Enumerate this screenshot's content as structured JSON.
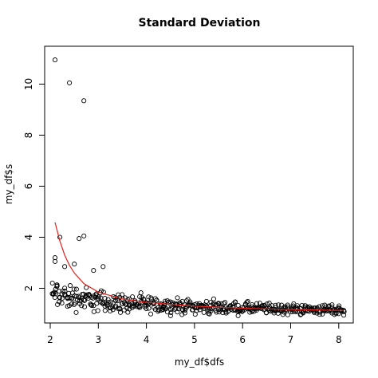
{
  "chart_data": {
    "type": "scatter",
    "title": "Standard Deviation",
    "xlabel": "my_df$dfs",
    "ylabel": "my_df$s",
    "xlim": [
      2,
      8.15
    ],
    "ylim": [
      0.9,
      11.3
    ],
    "x_ticks": [
      2,
      3,
      4,
      5,
      6,
      7,
      8
    ],
    "y_ticks": [
      2,
      4,
      6,
      8,
      10
    ],
    "grid": false,
    "legend": "none",
    "point_color": "#000000",
    "curve_color": "#e0201b",
    "outlier_points": [
      {
        "x": 2.1,
        "y": 10.95
      },
      {
        "x": 2.4,
        "y": 10.05
      },
      {
        "x": 2.7,
        "y": 9.35
      },
      {
        "x": 2.2,
        "y": 4.0
      },
      {
        "x": 2.6,
        "y": 3.95
      },
      {
        "x": 2.7,
        "y": 4.05
      },
      {
        "x": 2.5,
        "y": 2.95
      },
      {
        "x": 2.1,
        "y": 3.2
      },
      {
        "x": 2.1,
        "y": 3.05
      },
      {
        "x": 2.3,
        "y": 2.85
      },
      {
        "x": 2.9,
        "y": 2.7
      },
      {
        "x": 3.1,
        "y": 2.85
      }
    ],
    "bulk_band": {
      "x_range": [
        2.05,
        8.1
      ],
      "x_step": 0.05,
      "points_per_x": 4,
      "center_by_x": [
        [
          2.1,
          1.75
        ],
        [
          3,
          1.5
        ],
        [
          4,
          1.35
        ],
        [
          5,
          1.28
        ],
        [
          6,
          1.22
        ],
        [
          7,
          1.18
        ],
        [
          8,
          1.15
        ]
      ],
      "spread_by_x": [
        [
          2.1,
          0.45
        ],
        [
          3,
          0.32
        ],
        [
          4,
          0.25
        ],
        [
          5,
          0.2
        ],
        [
          6,
          0.18
        ],
        [
          7,
          0.16
        ],
        [
          8,
          0.15
        ]
      ]
    },
    "fit_curve": {
      "x": [
        2.1,
        2.2,
        2.3,
        2.4,
        2.5,
        2.7,
        3.0,
        3.5,
        4.0,
        5.0,
        6.0,
        7.0,
        8.1
      ],
      "y": [
        4.58,
        3.85,
        3.3,
        2.9,
        2.6,
        2.18,
        1.85,
        1.58,
        1.45,
        1.3,
        1.22,
        1.17,
        1.13
      ]
    }
  }
}
